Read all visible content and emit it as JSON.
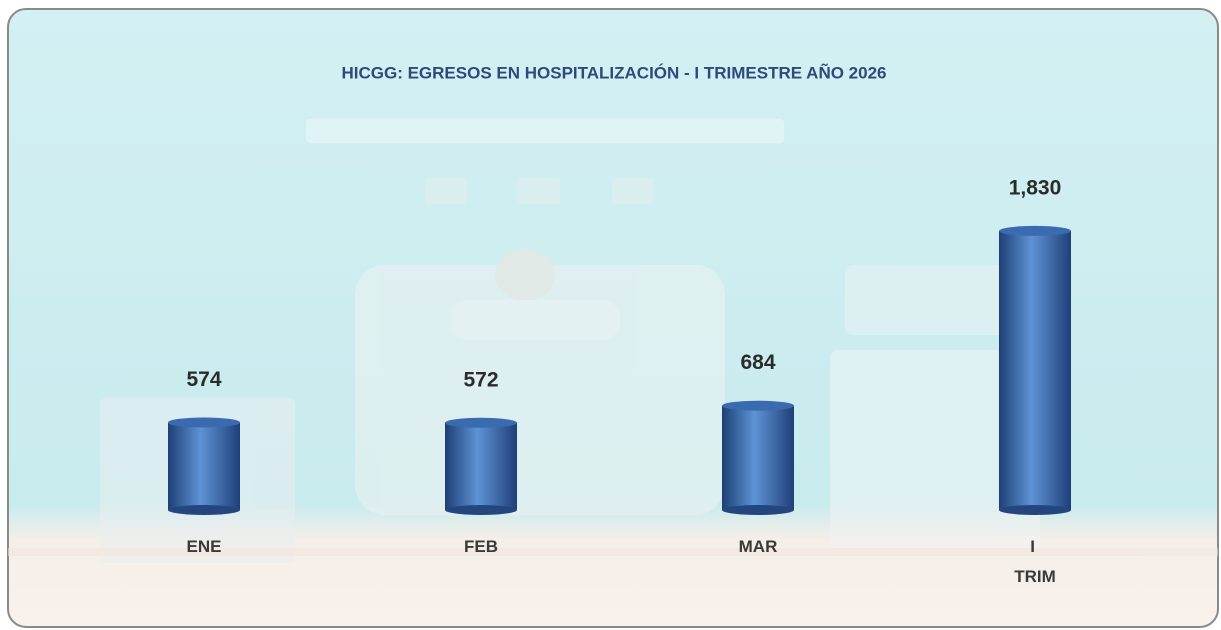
{
  "chart_data": {
    "type": "bar",
    "title": "HICGG: EGRESOS EN HOSPITALIZACIÓN  - I TRIMESTRE  AÑO 2026",
    "categories": [
      "ENE",
      "FEB",
      "MAR",
      "I TRIM"
    ],
    "values": [
      574,
      572,
      684,
      1830
    ],
    "value_labels": [
      "574",
      "572",
      "684",
      "1,830"
    ],
    "color": "#3a6bb0"
  }
}
